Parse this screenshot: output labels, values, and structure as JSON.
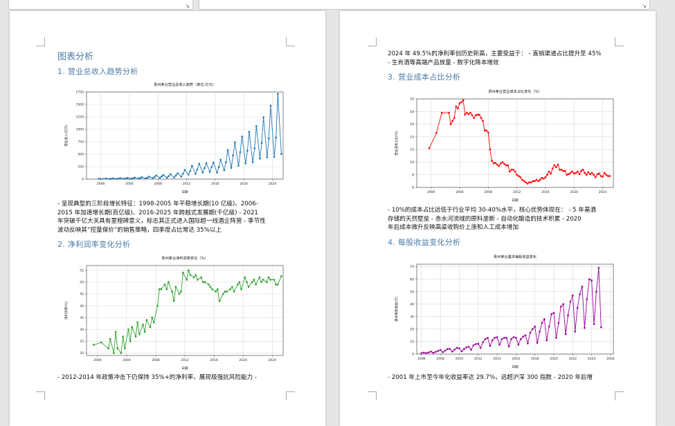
{
  "doc": {
    "section_title": "图表分析",
    "h_revenue": "1. 营业总收入趋势分析",
    "h_netmargin": "2. 净利润率变化分析",
    "h_cost": "3. 营业成本占比分析",
    "h_eps": "4. 每股收益变化分析",
    "p_revenue": [
      "- 呈现典型的三阶段增长特征：1998-2005 年平稳增长期(10 亿级)、2006-",
      "2015 年加速增长期(百亿级)、2016-2025 年跨越式发展期(千亿级) - 2021",
      "年突破千亿大关具有里程碑意义，标志其正式进入国际超一线酒企阵营 - 季节性",
      "波动反映其“控量保价”的销售策略，四季度占比常达 35%以上"
    ],
    "p_netmargin": "- 2012-2014 年政策冲击下仍保持 35%+的净利率，展现极强抗风险能力 -",
    "p_right_top": [
      "2024 年 49.5%的净利率创历史新高，主要受益于： - 直销渠道占比提升至 45%",
      "- 生肖酒等高端产品放量 - 数字化降本增效"
    ],
    "p_cost": [
      "- 10%的成本占比远低于行业平均 30-40%水平，核心优势体现在： - 5 年基酒",
      "存储的天然壁垒 - 赤水河流域的原料垄断 - 自动化酿造的技术积累 - 2020",
      "年后成本微升反映高粱收购价上涨和人工成本增加"
    ],
    "p_eps": "- 2001 年上市至今年化收益率达 29.7%，远超沪深 300 指数 - 2020 年后增"
  },
  "chart_data": [
    {
      "type": "line",
      "title": "贵州茅台营业总收入趋势（单位:亿元）",
      "xlabel": "日期",
      "ylabel": "营业收入(亿元)",
      "color": "#1f77b4",
      "xlim": [
        1998,
        2025.5
      ],
      "ylim": [
        0,
        1750
      ],
      "xticks": [
        "2000",
        "2004",
        "2008",
        "2012",
        "2016",
        "2020",
        "2024"
      ],
      "xtick_values": [
        2000,
        2004,
        2008,
        2012,
        2016,
        2020,
        2024
      ],
      "yticks": [
        "0",
        "250",
        "500",
        "750",
        "1000",
        "1250",
        "1500",
        "1750"
      ],
      "ytick_values": [
        0,
        250,
        500,
        750,
        1000,
        1250,
        1500,
        1750
      ],
      "x": [
        1999.75,
        2000.75,
        2001.25,
        2001.5,
        2001.75,
        2002.25,
        2002.5,
        2002.75,
        2003.25,
        2003.5,
        2003.75,
        2004.25,
        2004.5,
        2004.75,
        2005.25,
        2005.5,
        2005.75,
        2006.25,
        2006.5,
        2006.75,
        2007.25,
        2007.5,
        2007.75,
        2008.25,
        2008.5,
        2008.75,
        2009.25,
        2009.5,
        2009.75,
        2010.25,
        2010.5,
        2010.75,
        2011.25,
        2011.5,
        2011.75,
        2012.25,
        2012.5,
        2012.75,
        2013.25,
        2013.5,
        2013.75,
        2014.25,
        2014.5,
        2014.75,
        2015.25,
        2015.5,
        2015.75,
        2016.25,
        2016.5,
        2016.75,
        2017.25,
        2017.5,
        2017.75,
        2018.25,
        2018.5,
        2018.75,
        2019.25,
        2019.5,
        2019.75,
        2020.25,
        2020.5,
        2020.75,
        2021.25,
        2021.5,
        2021.75,
        2022.25,
        2022.5,
        2022.75,
        2023.25,
        2023.5,
        2023.75,
        2024.25,
        2024.5,
        2024.75,
        2025.25
      ],
      "values": [
        10,
        13,
        4,
        8,
        16,
        5,
        10,
        18,
        6,
        13,
        24,
        8,
        17,
        30,
        11,
        22,
        39,
        13,
        28,
        49,
        20,
        42,
        72,
        27,
        54,
        82,
        29,
        60,
        97,
        34,
        73,
        116,
        51,
        107,
        184,
        90,
        164,
        264,
        106,
        197,
        310,
        132,
        222,
        322,
        146,
        244,
        334,
        132,
        240,
        389,
        177,
        338,
        582,
        225,
        478,
        736,
        270,
        543,
        854,
        315,
        569,
        950,
        338,
        620,
        1062,
        412,
        725,
        1241,
        438,
        815,
        1476,
        445,
        834,
        1712,
        506
      ]
    },
    {
      "type": "line",
      "title": "贵州茅台净利润率变化（%）",
      "xlabel": "日期",
      "ylabel": "净利润率(%)",
      "color": "#2ca02c",
      "xlim": [
        1998.5,
        2025.5
      ],
      "ylim": [
        19,
        57
      ],
      "xticks": [
        "2000",
        "2004",
        "2008",
        "2012",
        "2016",
        "2020",
        "2024"
      ],
      "xtick_values": [
        2000,
        2004,
        2008,
        2012,
        2016,
        2020,
        2024
      ],
      "yticks": [
        "20",
        "25",
        "30",
        "35",
        "40",
        "45",
        "50",
        "55"
      ],
      "ytick_values": [
        20,
        25,
        30,
        35,
        40,
        45,
        50,
        55
      ],
      "x": [
        1999.5,
        2000.5,
        2001.5,
        2001.75,
        2002.25,
        2002.5,
        2002.75,
        2003.25,
        2003.5,
        2003.75,
        2004.25,
        2004.5,
        2004.75,
        2005.25,
        2005.5,
        2005.75,
        2006.25,
        2006.5,
        2006.75,
        2007.25,
        2007.5,
        2007.75,
        2008.25,
        2008.5,
        2008.75,
        2009.25,
        2009.5,
        2009.75,
        2010.25,
        2010.5,
        2010.75,
        2011.25,
        2011.5,
        2011.75,
        2012.25,
        2012.5,
        2012.75,
        2013.25,
        2013.5,
        2013.75,
        2014.25,
        2014.5,
        2014.75,
        2015.25,
        2015.5,
        2015.75,
        2016.25,
        2016.5,
        2016.75,
        2017.25,
        2017.5,
        2017.75,
        2018.25,
        2018.5,
        2018.75,
        2019.25,
        2019.5,
        2019.75,
        2020.25,
        2020.5,
        2020.75,
        2021.25,
        2021.5,
        2021.75,
        2022.25,
        2022.5,
        2022.75,
        2023.25,
        2023.5,
        2023.75,
        2024.25,
        2024.5,
        2024.75,
        2025.25
      ],
      "values": [
        23.5,
        24.5,
        22,
        26,
        20,
        29,
        22,
        20,
        27,
        22,
        30,
        25,
        31,
        27,
        33,
        28,
        32,
        29,
        34,
        31,
        35,
        33,
        40,
        47,
        47,
        49,
        47,
        50,
        46,
        42,
        48,
        45,
        46,
        54,
        51,
        55,
        53,
        52,
        53,
        51,
        52,
        50,
        50,
        49,
        48,
        47,
        46,
        47,
        42,
        45,
        46,
        46,
        47,
        48,
        46,
        49,
        50,
        47,
        52,
        50,
        48,
        50,
        51,
        49,
        52,
        50,
        51,
        50,
        52,
        51,
        51,
        49,
        49,
        52.5
      ]
    },
    {
      "type": "line",
      "title": "贵州茅台营业成本占比变化（%）",
      "xlabel": "日期",
      "ylabel": "营业成本占比(%)",
      "color": "#ff0000",
      "xlim": [
        1998,
        2025.5
      ],
      "ylim": [
        6,
        20
      ],
      "xticks": [
        "2000",
        "2004",
        "2008",
        "2012",
        "2016",
        "2020",
        "2024"
      ],
      "xtick_values": [
        2000,
        2004,
        2008,
        2012,
        2016,
        2020,
        2024
      ],
      "yticks": [
        "6",
        "8",
        "10",
        "12",
        "14",
        "16",
        "18",
        "20"
      ],
      "ytick_values": [
        6,
        8,
        10,
        12,
        14,
        16,
        18,
        20
      ],
      "x": [
        1999.75,
        2000.75,
        2001.5,
        2002.5,
        2002.75,
        2003.0,
        2003.25,
        2003.5,
        2003.75,
        2004.0,
        2004.25,
        2004.5,
        2004.75,
        2005.0,
        2005.25,
        2005.5,
        2005.75,
        2006.0,
        2006.25,
        2006.5,
        2006.75,
        2007.0,
        2007.25,
        2007.5,
        2007.75,
        2008.0,
        2008.25,
        2008.5,
        2008.75,
        2009.0,
        2009.25,
        2009.5,
        2009.75,
        2010.0,
        2010.25,
        2010.5,
        2010.75,
        2011.0,
        2011.25,
        2011.5,
        2011.75,
        2012.0,
        2012.25,
        2012.5,
        2012.75,
        2013.0,
        2013.25,
        2013.5,
        2013.75,
        2014.0,
        2014.25,
        2014.5,
        2014.75,
        2015.0,
        2015.25,
        2015.5,
        2015.75,
        2016.0,
        2016.25,
        2016.5,
        2016.75,
        2017.0,
        2017.25,
        2017.5,
        2017.75,
        2018.0,
        2018.25,
        2018.5,
        2018.75,
        2019.0,
        2019.25,
        2019.5,
        2019.75,
        2020.0,
        2020.25,
        2020.5,
        2020.75,
        2021.0,
        2021.25,
        2021.5,
        2021.75,
        2022.0,
        2022.25,
        2022.5,
        2022.75,
        2023.0,
        2023.25,
        2023.5,
        2023.75,
        2024.0,
        2024.25,
        2024.5,
        2024.75,
        2025.0
      ],
      "values": [
        12.2,
        14.6,
        17.8,
        17.8,
        16.0,
        16.5,
        17.0,
        18.8,
        18.5,
        19.3,
        19.5,
        19.8,
        17.5,
        17.8,
        17.6,
        17.8,
        17.4,
        17.0,
        17.4,
        17.5,
        17.5,
        17.0,
        16.5,
        15.0,
        15.0,
        14.7,
        12.0,
        10.2,
        9.8,
        9.9,
        9.6,
        9.4,
        9.8,
        10.0,
        9.7,
        9.5,
        9.5,
        8.5,
        8.8,
        8.8,
        8.5,
        8.0,
        7.8,
        7.6,
        7.2,
        7.0,
        6.8,
        6.6,
        6.8,
        6.8,
        7.0,
        7.0,
        7.2,
        7.0,
        7.2,
        7.5,
        7.4,
        7.6,
        8.0,
        8.5,
        8.2,
        9.0,
        9.5,
        9.2,
        9.6,
        8.8,
        8.8,
        8.6,
        8.6,
        8.0,
        8.1,
        8.3,
        8.5,
        8.2,
        8.3,
        8.5,
        8.1,
        8.6,
        8.8,
        8.3,
        8.0,
        8.4,
        8.1,
        8.3,
        8.0,
        7.6,
        8.1,
        8.2,
        7.8,
        7.7,
        8.3,
        8.0,
        7.8,
        7.8
      ]
    },
    {
      "type": "line",
      "title": "贵州茅台基本每股收益变化",
      "xlabel": "日期",
      "ylabel": "基本每股收益(元)",
      "color": "#9b009b",
      "xlim": [
        2005.5,
        2026.3
      ],
      "ylim": [
        0,
        72
      ],
      "xticks": [
        "2006",
        "2008",
        "2010",
        "2012",
        "2014",
        "2016",
        "2018",
        "2020",
        "2022",
        "2024",
        "2026"
      ],
      "xtick_values": [
        2006,
        2008,
        2010,
        2012,
        2014,
        2016,
        2018,
        2020,
        2022,
        2024,
        2026
      ],
      "yticks": [
        "0",
        "10",
        "20",
        "30",
        "40",
        "50",
        "60",
        "70"
      ],
      "ytick_values": [
        0,
        10,
        20,
        30,
        40,
        50,
        60,
        70
      ],
      "x": [
        2006.0,
        2006.25,
        2006.5,
        2006.75,
        2007.0,
        2007.25,
        2007.5,
        2007.75,
        2008.0,
        2008.25,
        2008.5,
        2008.75,
        2009.0,
        2009.25,
        2009.5,
        2009.75,
        2010.0,
        2010.25,
        2010.5,
        2010.75,
        2011.0,
        2011.25,
        2011.5,
        2011.75,
        2012.0,
        2012.25,
        2012.5,
        2012.75,
        2013.0,
        2013.25,
        2013.5,
        2013.75,
        2014.0,
        2014.25,
        2014.5,
        2014.75,
        2015.0,
        2015.25,
        2015.5,
        2015.75,
        2016.0,
        2016.25,
        2016.5,
        2016.75,
        2017.0,
        2017.25,
        2017.5,
        2017.75,
        2018.0,
        2018.25,
        2018.5,
        2018.75,
        2019.0,
        2019.25,
        2019.5,
        2019.75,
        2020.0,
        2020.25,
        2020.5,
        2020.75,
        2021.0,
        2021.25,
        2021.5,
        2021.75,
        2022.0,
        2022.25,
        2022.5,
        2022.75,
        2023.0,
        2023.25,
        2023.5,
        2023.75,
        2024.0,
        2024.25,
        2024.5,
        2024.75,
        2025.0
      ],
      "values": [
        0.8,
        1.2,
        0.8,
        1.3,
        2.0,
        1.0,
        1.8,
        2.5,
        3.3,
        1.5,
        2.8,
        4.0,
        4.2,
        2.0,
        3.6,
        5.0,
        4.6,
        2.2,
        4.0,
        5.3,
        5.8,
        3.5,
        7.0,
        8.0,
        8.3,
        5.0,
        9.5,
        12.0,
        13.0,
        6.5,
        11.0,
        13.0,
        13.5,
        7.5,
        12.0,
        13.0,
        13.0,
        6.0,
        12.0,
        13.5,
        13.0,
        7.5,
        12.0,
        14.0,
        15.0,
        8.5,
        17.0,
        20.0,
        22.0,
        9.0,
        18.0,
        25.0,
        28.0,
        11.0,
        22.0,
        32.0,
        33.0,
        13.0,
        25.0,
        38.0,
        40.0,
        16.0,
        31.0,
        42.0,
        47.0,
        18.0,
        37.0,
        48.0,
        54.0,
        21.0,
        44.0,
        60.0,
        59.0,
        24.0,
        50.0,
        69.0,
        21.5
      ]
    }
  ]
}
